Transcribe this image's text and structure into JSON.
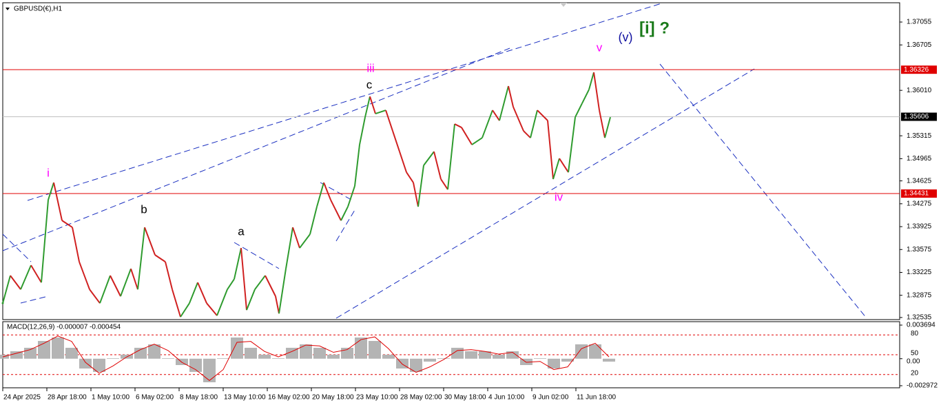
{
  "chart_data": [
    {
      "type": "line",
      "title": "GBPUSD(€),H1",
      "x": [
        0,
        11,
        26,
        41,
        56,
        66,
        74,
        86,
        101,
        111,
        126,
        141,
        156,
        171,
        186,
        196,
        206,
        221,
        236,
        246,
        258,
        271,
        283,
        296,
        311,
        326,
        336,
        346,
        354,
        366,
        381,
        396,
        401,
        411,
        421,
        431,
        446,
        456,
        466,
        476,
        491,
        501,
        511,
        518,
        526,
        533,
        541,
        556,
        566,
        576,
        586,
        596,
        603,
        611,
        626,
        636,
        646,
        656,
        666,
        681,
        696,
        711,
        721,
        734,
        741,
        756,
        766,
        776,
        791,
        799,
        808,
        821,
        831,
        841,
        851,
        858,
        866,
        874,
        882
      ],
      "series": [
        {
          "name": "GBPUSD",
          "color": "#2e9b2e",
          "down_color": "#d02020",
          "values": [
            1.32754,
            1.33176,
            1.32965,
            1.33334,
            1.33071,
            1.34335,
            1.34599,
            1.34019,
            1.33914,
            1.33387,
            1.32965,
            1.32754,
            1.33176,
            1.3286,
            1.33281,
            1.32965,
            1.33914,
            1.33492,
            1.33387,
            1.32965,
            1.32544,
            1.32754,
            1.33071,
            1.32754,
            1.32565,
            1.32965,
            1.33123,
            1.33598,
            1.32649,
            1.32965,
            1.33176,
            1.3286,
            1.32596,
            1.33281,
            1.33914,
            1.33598,
            1.33808,
            1.3423,
            1.34599,
            1.34335,
            1.34019,
            1.3423,
            1.34546,
            1.35179,
            1.356,
            1.35916,
            1.35653,
            1.35706,
            1.35389,
            1.35073,
            1.34757,
            1.34599,
            1.3423,
            1.34862,
            1.35073,
            1.34652,
            1.34494,
            1.35495,
            1.35442,
            1.35179,
            1.35284,
            1.35706,
            1.35548,
            1.36075,
            1.35758,
            1.35389,
            1.35284,
            1.35706,
            1.35548,
            1.34652,
            1.34968,
            1.34757,
            1.356,
            1.35811,
            1.36022,
            1.36285,
            1.35706,
            1.35284,
            1.356
          ]
        }
      ],
      "xlim": [
        0,
        1302
      ],
      "ylim": [
        1.32503,
        1.3735
      ],
      "xticks": [
        {
          "value": 0,
          "label": "24 Apr 2025"
        },
        {
          "value": 64,
          "label": "28 Apr 18:00"
        },
        {
          "value": 128,
          "label": "1 May 10:00"
        },
        {
          "value": 192,
          "label": "6 May 02:00"
        },
        {
          "value": 256,
          "label": "8 May 18:00"
        },
        {
          "value": 320,
          "label": "13 May 10:00"
        },
        {
          "value": 384,
          "label": "16 May 02:00"
        },
        {
          "value": 448,
          "label": "20 May 18:00"
        },
        {
          "value": 512,
          "label": "23 May 10:00"
        },
        {
          "value": 576,
          "label": "28 May 02:00"
        },
        {
          "value": 640,
          "label": "30 May 18:00"
        },
        {
          "value": 704,
          "label": "4 Jun 10:00"
        },
        {
          "value": 768,
          "label": "9 Jun 02:00"
        },
        {
          "value": 832,
          "label": "11 Jun 18:00"
        }
      ],
      "yticks": [
        1.37055,
        1.36705,
        {
          "value": 1.3601,
          "label": "1.36010"
        },
        1.35315,
        1.34965,
        1.34625,
        1.34275,
        1.33925,
        1.33575,
        1.33225,
        1.32875,
        1.32535
      ],
      "hlines": [
        {
          "value": 1.36326,
          "color": "#e00000"
        },
        {
          "value": 1.34431,
          "color": "#e00000"
        },
        {
          "value": 1.35606,
          "color": "#000000"
        }
      ],
      "annotations": [
        {
          "text": "i",
          "color": "#ff00ff"
        },
        {
          "text": "iii",
          "color": "#ff00ff"
        },
        {
          "text": "v",
          "color": "#ff00ff"
        },
        {
          "text": "iv",
          "color": "#ff00ff"
        },
        {
          "text": "b",
          "color": "#000000"
        },
        {
          "text": "a",
          "color": "#000000"
        },
        {
          "text": "c",
          "color": "#000000"
        },
        {
          "text": "(v)",
          "color": "#1010a0"
        },
        {
          "text": "[i] ?",
          "color": "#1a7a1a"
        }
      ]
    },
    {
      "type": "macd",
      "title": "MACD(12,26,9) -0.000007 -0.000454",
      "x": [
        0,
        20,
        40,
        60,
        80,
        100,
        120,
        140,
        160,
        180,
        200,
        220,
        240,
        260,
        280,
        300,
        320,
        340,
        360,
        380,
        400,
        420,
        440,
        460,
        480,
        500,
        520,
        540,
        560,
        580,
        600,
        620,
        640,
        660,
        680,
        700,
        720,
        740,
        760,
        780,
        800,
        820,
        840,
        860,
        880
      ],
      "series": [
        {
          "name": "MACD",
          "color": "#b4b4b4",
          "values": [
            0.00044,
            0.00082,
            0.0012,
            0.00195,
            0.00233,
            0.0012,
            -0.00108,
            -0.00145,
            6e-05,
            0.00044,
            0.0012,
            0.00158,
            6e-05,
            -0.0007,
            -0.00145,
            -0.00259,
            6e-05,
            0.00233,
            0.0012,
            0.00044,
            6e-05,
            0.0012,
            0.00158,
            0.0012,
            0.00044,
            0.0012,
            0.00233,
            0.00195,
            0.00044,
            -0.00108,
            -0.00145,
            -0.00032,
            6e-05,
            0.0012,
            0.00082,
            0.00082,
            0.00044,
            0.00082,
            -0.0007,
            6e-05,
            -0.00108,
            -0.00032,
            0.00158,
            0.00158,
            -0.00032
          ]
        },
        {
          "name": "Signal",
          "color": "#e00000",
          "values": [
            0.0002,
            0.0006,
            0.001,
            0.0017,
            0.0025,
            0.0019,
            -0.0004,
            -0.0016,
            -0.0008,
            0.0002,
            0.001,
            0.0016,
            0.0009,
            -0.0004,
            -0.0012,
            -0.0024,
            -0.0012,
            0.0018,
            0.0019,
            0.0008,
            0.0002,
            0.0008,
            0.0015,
            0.0014,
            0.0007,
            0.001,
            0.0021,
            0.0024,
            0.0011,
            -0.0006,
            -0.0015,
            -0.0009,
            -0.0001,
            0.0009,
            0.001,
            0.0008,
            0.0005,
            0.0007,
            -0.0004,
            -0.0003,
            -0.0012,
            -0.0009,
            0.0011,
            0.0017,
            0.0002
          ]
        }
      ],
      "xlim": [
        0,
        1302
      ],
      "ylim": [
        -0.003199,
        0.004073
      ],
      "yticks": [
        0.003694,
        {
          "value": 0,
          "label": "0.00"
        },
        -0.002972
      ],
      "levels": [
        80,
        50,
        20
      ],
      "levels_lim": [
        0,
        100
      ],
      "level_color": "#e00000"
    }
  ]
}
